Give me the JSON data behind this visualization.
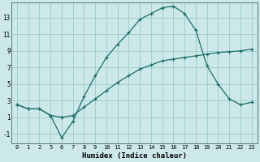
{
  "xlabel": "Humidex (Indice chaleur)",
  "bg_color": "#cce8e8",
  "grid_color": "#99cccc",
  "line_color": "#1a6e6a",
  "x_labels": [
    "0",
    "1",
    "2",
    "5",
    "6",
    "7",
    "8",
    "9",
    "10",
    "11",
    "12",
    "13",
    "14",
    "15",
    "16",
    "17",
    "18",
    "19",
    "20",
    "21",
    "22",
    "23"
  ],
  "y_ticks": [
    -1,
    1,
    3,
    5,
    7,
    9,
    11,
    13
  ],
  "ylim": [
    -2.2,
    14.8
  ],
  "line1_y": [
    2.5,
    2.0,
    2.0,
    1.2,
    -1.5,
    0.5,
    3.5,
    6.0,
    8.2,
    9.8,
    11.2,
    12.8,
    13.5,
    14.2,
    14.4,
    13.5,
    11.5,
    7.2,
    5.0,
    3.2,
    2.5,
    2.8
  ],
  "line2_y": [
    2.5,
    2.0,
    2.0,
    1.2,
    1.0,
    1.2,
    2.2,
    3.2,
    4.2,
    5.2,
    6.0,
    6.8,
    7.3,
    7.8,
    8.0,
    8.2,
    8.4,
    8.6,
    8.8,
    8.9,
    9.0,
    9.2
  ]
}
